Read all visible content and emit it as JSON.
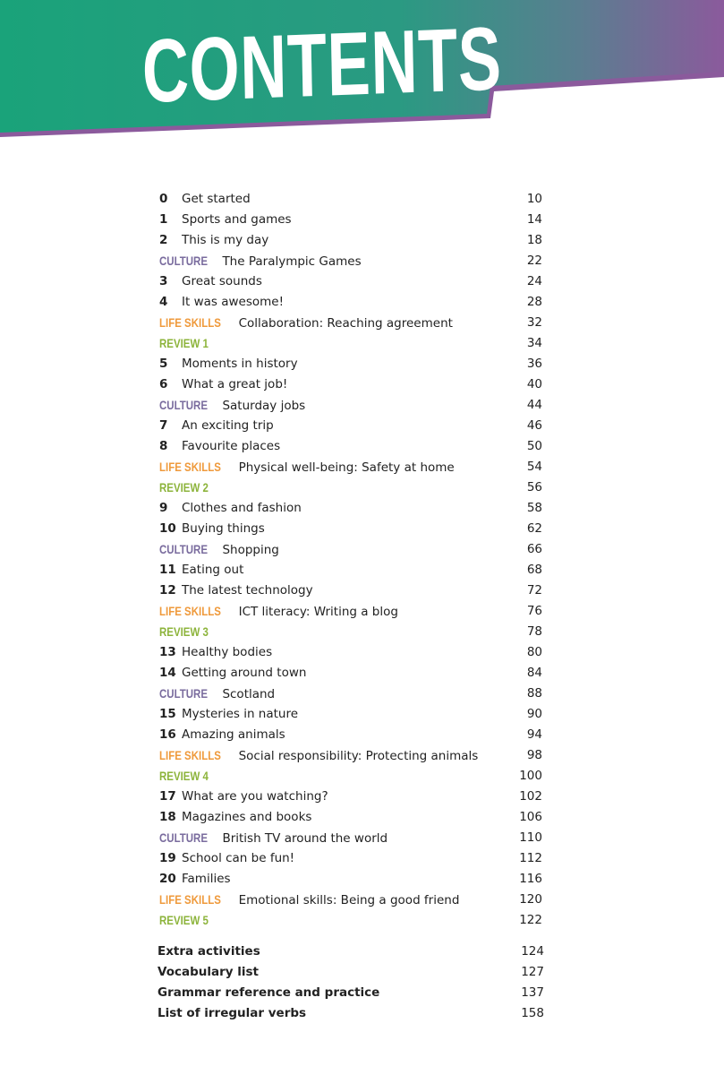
{
  "header": {
    "title": "CONTENTS",
    "colors": {
      "green": "#1aa37a",
      "purple": "#8b5a9c"
    }
  },
  "tag_colors": {
    "CULTURE": "#7a6c9e",
    "LIFE SKILLS": "#ef9a3c",
    "REVIEW": "#8db43c"
  },
  "toc": [
    {
      "type": "unit",
      "num": "0",
      "title": "Get started",
      "page": "10"
    },
    {
      "type": "unit",
      "num": "1",
      "title": "Sports and games",
      "page": "14"
    },
    {
      "type": "unit",
      "num": "2",
      "title": "This is my day",
      "page": "18"
    },
    {
      "type": "culture",
      "tag": "CULTURE",
      "title": "The Paralympic Games",
      "page": "22"
    },
    {
      "type": "unit",
      "num": "3",
      "title": "Great sounds",
      "page": "24"
    },
    {
      "type": "unit",
      "num": "4",
      "title": "It was awesome!",
      "page": "28"
    },
    {
      "type": "life",
      "tag": "LIFE SKILLS",
      "title": "Collaboration: Reaching agreement",
      "page": "32"
    },
    {
      "type": "review",
      "tag": "REVIEW 1",
      "title": "",
      "page": "34"
    },
    {
      "type": "unit",
      "num": "5",
      "title": "Moments in history",
      "page": "36"
    },
    {
      "type": "unit",
      "num": "6",
      "title": "What a great job!",
      "page": "40"
    },
    {
      "type": "culture",
      "tag": "CULTURE",
      "title": "Saturday jobs",
      "page": "44"
    },
    {
      "type": "unit",
      "num": "7",
      "title": "An exciting trip",
      "page": "46"
    },
    {
      "type": "unit",
      "num": "8",
      "title": "Favourite places",
      "page": "50"
    },
    {
      "type": "life",
      "tag": "LIFE SKILLS",
      "title": "Physical well-being: Safety at home",
      "page": "54"
    },
    {
      "type": "review",
      "tag": "REVIEW 2",
      "title": "",
      "page": "56"
    },
    {
      "type": "unit",
      "num": "9",
      "title": "Clothes and fashion",
      "page": "58"
    },
    {
      "type": "unit",
      "num": "10",
      "title": "Buying things",
      "page": "62"
    },
    {
      "type": "culture",
      "tag": "CULTURE",
      "title": "Shopping",
      "page": "66"
    },
    {
      "type": "unit",
      "num": "11",
      "title": "Eating out",
      "page": "68"
    },
    {
      "type": "unit",
      "num": "12",
      "title": "The latest technology",
      "page": "72"
    },
    {
      "type": "life",
      "tag": "LIFE SKILLS",
      "title": "ICT literacy: Writing a blog",
      "page": "76"
    },
    {
      "type": "review",
      "tag": "REVIEW 3",
      "title": "",
      "page": "78"
    },
    {
      "type": "unit",
      "num": "13",
      "title": "Healthy bodies",
      "page": "80"
    },
    {
      "type": "unit",
      "num": "14",
      "title": "Getting around town",
      "page": "84"
    },
    {
      "type": "culture",
      "tag": "CULTURE",
      "title": "Scotland",
      "page": "88"
    },
    {
      "type": "unit",
      "num": "15",
      "title": "Mysteries in nature",
      "page": "90"
    },
    {
      "type": "unit",
      "num": "16",
      "title": "Amazing animals",
      "page": "94"
    },
    {
      "type": "life",
      "tag": "LIFE SKILLS",
      "title": "Social responsibility: Protecting animals",
      "page": "98"
    },
    {
      "type": "review",
      "tag": "REVIEW 4",
      "title": "",
      "page": "100"
    },
    {
      "type": "unit",
      "num": "17",
      "title": "What are you watching?",
      "page": "102"
    },
    {
      "type": "unit",
      "num": "18",
      "title": "Magazines and books",
      "page": "106"
    },
    {
      "type": "culture",
      "tag": "CULTURE",
      "title": "British TV around the world",
      "page": "110"
    },
    {
      "type": "unit",
      "num": "19",
      "title": "School can be fun!",
      "page": "112"
    },
    {
      "type": "unit",
      "num": "20",
      "title": "Families",
      "page": "116"
    },
    {
      "type": "life",
      "tag": "LIFE SKILLS",
      "title": "Emotional skills: Being a good friend",
      "page": "120"
    },
    {
      "type": "review",
      "tag": "REVIEW 5",
      "title": "",
      "page": "122"
    }
  ],
  "extras": [
    {
      "title": "Extra activities",
      "page": "124"
    },
    {
      "title": "Vocabulary list",
      "page": "127"
    },
    {
      "title": "Grammar reference and practice",
      "page": "137"
    },
    {
      "title": "List of irregular verbs",
      "page": "158"
    }
  ]
}
